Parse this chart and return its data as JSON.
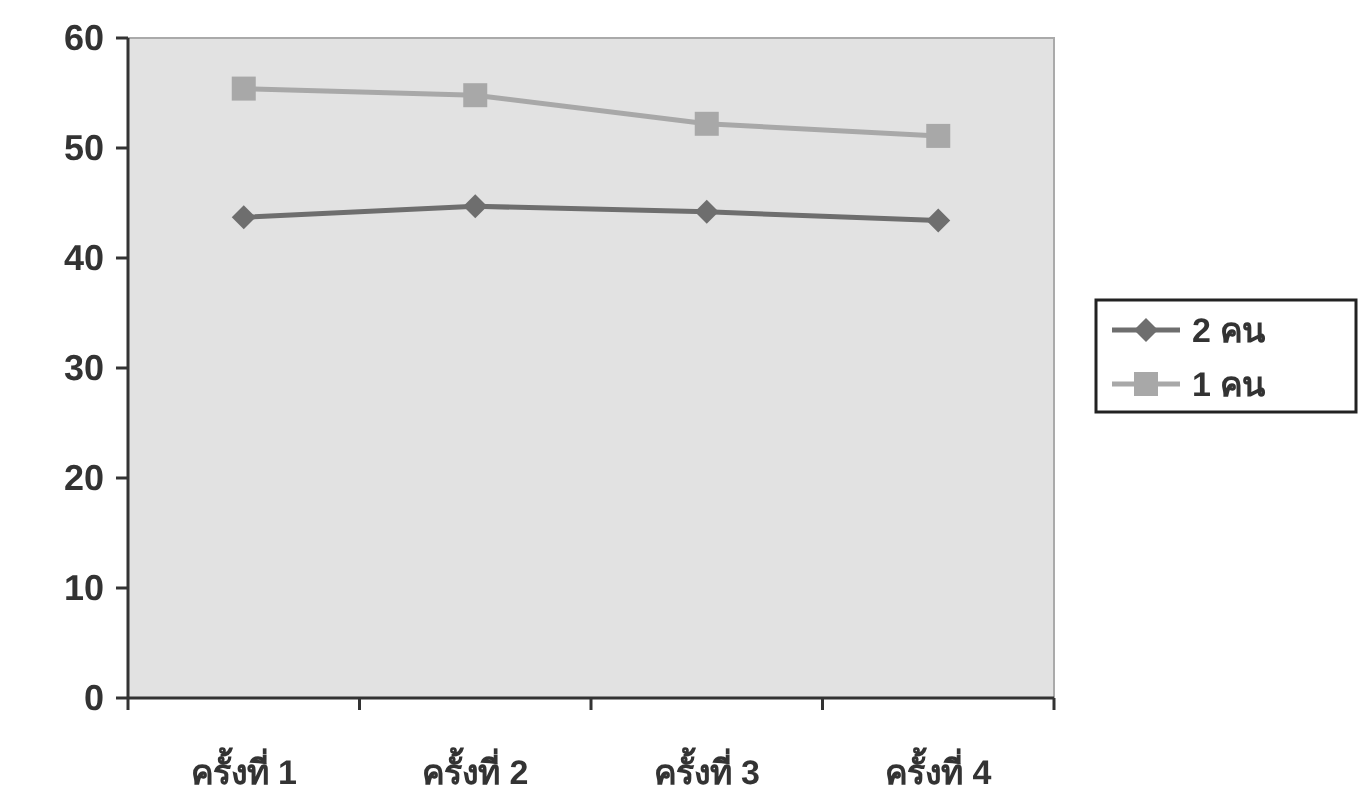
{
  "chart_data": {
    "type": "line",
    "categories": [
      "ครั้งที่ 1",
      "ครั้งที่ 2",
      "ครั้งที่ 3",
      "ครั้งที่ 4"
    ],
    "series": [
      {
        "name": "2 คน",
        "color": "#6e6e6e",
        "marker": "diamond",
        "values": [
          43.7,
          44.7,
          44.2,
          43.4
        ]
      },
      {
        "name": "1 คน",
        "color": "#a8a8a8",
        "marker": "square",
        "values": [
          55.4,
          54.8,
          52.2,
          51.1
        ]
      }
    ],
    "ylim": [
      0,
      60
    ],
    "yticks": [
      0,
      10,
      20,
      30,
      40,
      50,
      60
    ],
    "grid": false,
    "legend": "right",
    "line_style": "solid"
  }
}
